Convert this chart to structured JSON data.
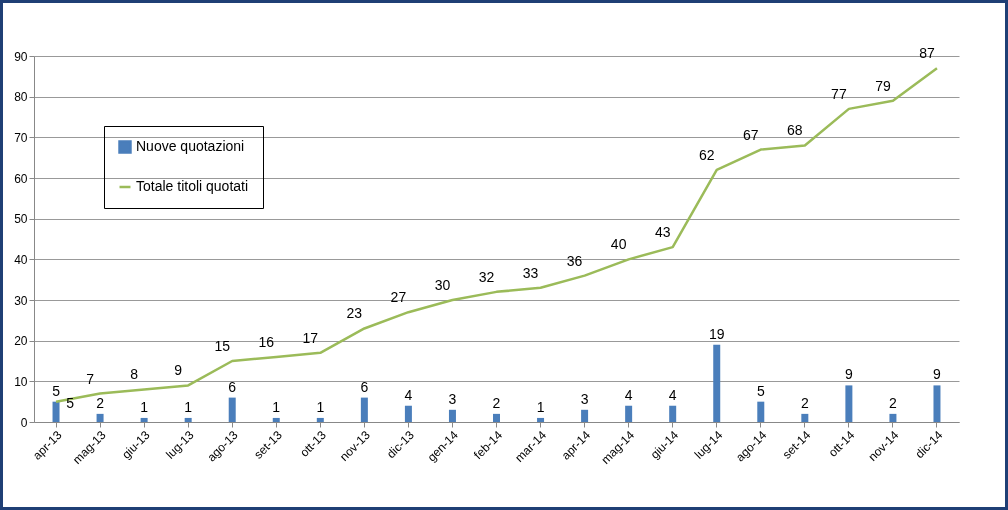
{
  "chart_data": {
    "type": "bar",
    "categories": [
      "apr-13",
      "mag-13",
      "giu-13",
      "lug-13",
      "ago-13",
      "set-13",
      "ott-13",
      "nov-13",
      "dic-13",
      "gen-14",
      "feb-14",
      "mar-14",
      "apr-14",
      "mag-14",
      "giu-14",
      "lug-14",
      "ago-14",
      "set-14",
      "ott-14",
      "nov-14",
      "dic-14"
    ],
    "series": [
      {
        "name": "Nuove quotazioni",
        "color": "#4a7ebb",
        "values": [
          5,
          2,
          1,
          1,
          6,
          1,
          1,
          6,
          4,
          3,
          2,
          1,
          3,
          4,
          4,
          19,
          5,
          2,
          9,
          2,
          9
        ]
      },
      {
        "name": "Totale titoli quotati",
        "type": "line",
        "color": "#9bbb59",
        "values": [
          5,
          7,
          8,
          9,
          15,
          16,
          17,
          23,
          27,
          30,
          32,
          33,
          36,
          40,
          43,
          62,
          67,
          68,
          77,
          79,
          87
        ]
      }
    ],
    "ylim": [
      0,
      90
    ],
    "yticks": [
      0,
      10,
      20,
      30,
      40,
      50,
      60,
      70,
      80,
      90
    ],
    "grid": "y",
    "legend": "top left",
    "data_labels": true,
    "marker": "none"
  }
}
